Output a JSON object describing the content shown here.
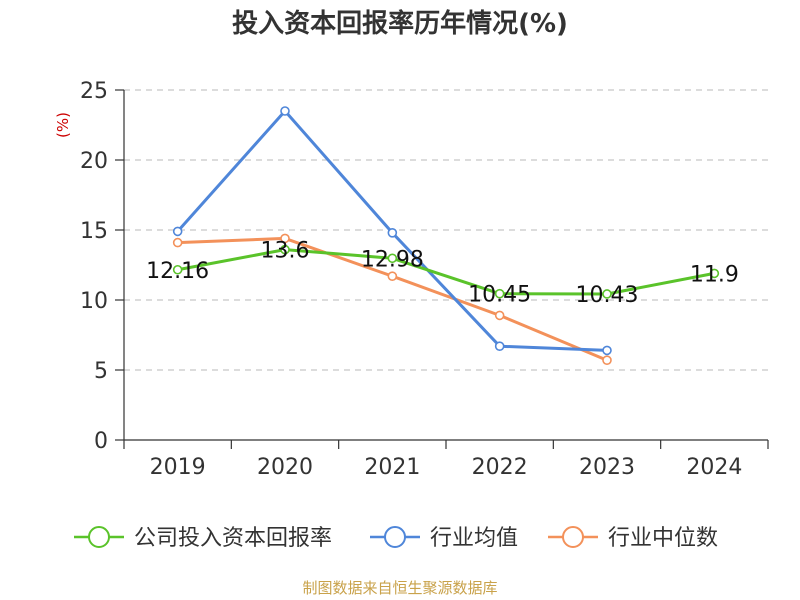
{
  "title": "投入资本回报率历年情况(%)",
  "unit_label": "(%)",
  "source": "制图数据来自恒生聚源数据库",
  "colors": {
    "company": "#5ac32a",
    "industry_avg": "#4f86d9",
    "industry_median": "#f3915a",
    "unit": "#cc0000",
    "source": "#c9a24a",
    "grid": "#c8c8c8",
    "axis": "#333333"
  },
  "chart_data": {
    "type": "line",
    "title": "投入资本回报率历年情况(%)",
    "ylabel": "(%)",
    "categories": [
      "2019",
      "2020",
      "2021",
      "2022",
      "2023",
      "2024"
    ],
    "ylim": [
      0,
      25
    ],
    "yticks": [
      0,
      5,
      10,
      15,
      20,
      25
    ],
    "grid": true,
    "legend_position": "bottom",
    "series": [
      {
        "name": "公司投入资本回报率",
        "key": "company",
        "values": [
          12.16,
          13.6,
          12.98,
          10.45,
          10.43,
          11.9
        ],
        "labels": [
          "12.16",
          "13.6",
          "12.98",
          "10.45",
          "10.43",
          "11.9"
        ]
      },
      {
        "name": "行业均值",
        "key": "industry_avg",
        "values": [
          14.9,
          23.5,
          14.8,
          6.7,
          6.4,
          null
        ]
      },
      {
        "name": "行业中位数",
        "key": "industry_median",
        "values": [
          14.1,
          14.4,
          11.7,
          8.9,
          5.7,
          null
        ]
      }
    ]
  }
}
